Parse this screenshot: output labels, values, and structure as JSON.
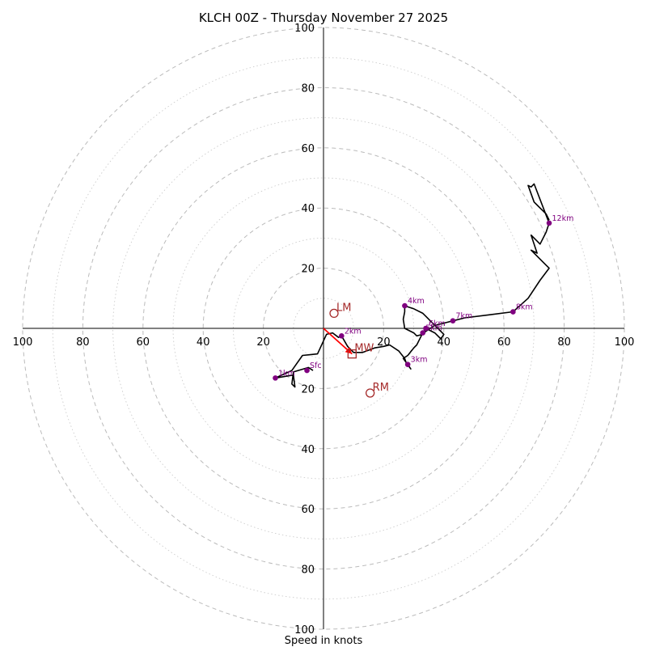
{
  "chart_data": {
    "type": "scatter",
    "subtype": "hodograph",
    "title": "KLCH 00Z - Thursday November 27 2025",
    "xlabel": "Speed in knots",
    "ylabel": "",
    "units": "knots",
    "xlim": [
      -100,
      100
    ],
    "ylim": [
      -100,
      100
    ],
    "ring_major_step": 20,
    "ring_minor_step": 10,
    "grid": true,
    "x_tick_labels": [
      "100",
      "80",
      "60",
      "40",
      "20",
      "20",
      "40",
      "60",
      "80",
      "100"
    ],
    "y_tick_labels": [
      "100",
      "80",
      "60",
      "40",
      "20",
      "20",
      "40",
      "60",
      "80",
      "100"
    ],
    "x_tick_values": [
      -100,
      -80,
      -60,
      -40,
      -20,
      20,
      40,
      60,
      80,
      100
    ],
    "y_tick_values": [
      100,
      80,
      60,
      40,
      20,
      -20,
      -40,
      -60,
      -80,
      -100
    ],
    "trace": [
      [
        -3.5,
        -14
      ],
      [
        -5,
        -13
      ],
      [
        -10,
        -14.5
      ],
      [
        -10.5,
        -18.5
      ],
      [
        -9.5,
        -19.5
      ],
      [
        -10,
        -15.5
      ],
      [
        -16,
        -16.5
      ],
      [
        -10.5,
        -14
      ],
      [
        -7,
        -9
      ],
      [
        -2,
        -8.5
      ],
      [
        1,
        -2
      ],
      [
        3,
        -1.5
      ],
      [
        5,
        -3
      ],
      [
        6,
        -2.5
      ],
      [
        8,
        -6
      ],
      [
        10,
        -8
      ],
      [
        13,
        -8
      ],
      [
        17,
        -6.5
      ],
      [
        20,
        -6
      ],
      [
        22,
        -5.5
      ],
      [
        25,
        -7.5
      ],
      [
        27,
        -10
      ],
      [
        27.5,
        -11.5
      ],
      [
        28,
        -12
      ],
      [
        29,
        -13.5
      ],
      [
        26.5,
        -10
      ],
      [
        28,
        -9
      ],
      [
        30,
        -6.5
      ],
      [
        31,
        -5.5
      ],
      [
        32.5,
        -2.5
      ],
      [
        33,
        -1.5
      ],
      [
        34,
        0
      ],
      [
        37,
        -1.5
      ],
      [
        39,
        -3.5
      ],
      [
        40,
        -2
      ],
      [
        38,
        0
      ],
      [
        36,
        2
      ],
      [
        34,
        4
      ],
      [
        33,
        5
      ],
      [
        30,
        6.5
      ],
      [
        27,
        7.5
      ],
      [
        27,
        5.5
      ],
      [
        26.5,
        3
      ],
      [
        27,
        0
      ],
      [
        30,
        -1.5
      ],
      [
        31,
        -2.5
      ],
      [
        33,
        -2
      ],
      [
        34,
        -1
      ],
      [
        37,
        1
      ],
      [
        41,
        2
      ],
      [
        43,
        2.5
      ],
      [
        47,
        3.5
      ],
      [
        55,
        4.5
      ],
      [
        63,
        5.5
      ],
      [
        68,
        10
      ],
      [
        72,
        16
      ],
      [
        75,
        20
      ],
      [
        74,
        21
      ],
      [
        69,
        26
      ],
      [
        71,
        25
      ],
      [
        69,
        31
      ],
      [
        72,
        28
      ],
      [
        74,
        32
      ],
      [
        75,
        35
      ],
      [
        70,
        48
      ],
      [
        69,
        47
      ],
      [
        68,
        47.5
      ],
      [
        70,
        42
      ],
      [
        71,
        41
      ],
      [
        74,
        38
      ],
      [
        75,
        36
      ]
    ],
    "height_markers": [
      {
        "label": "Sfc",
        "u": -5.5,
        "v": -14
      },
      {
        "label": "1km",
        "u": -16,
        "v": -16.5
      },
      {
        "label": "2km",
        "u": 6,
        "v": -2.5
      },
      {
        "label": "3km",
        "u": 28,
        "v": -12
      },
      {
        "label": "4km",
        "u": 27,
        "v": 7.5
      },
      {
        "label": "5km",
        "u": 33,
        "v": -1.5
      },
      {
        "label": "6km",
        "u": 34,
        "v": 0
      },
      {
        "label": "7km",
        "u": 43,
        "v": 2.5
      },
      {
        "label": "8km",
        "u": 63,
        "v": 5.5
      },
      {
        "label": "12km",
        "u": 75,
        "v": 35
      }
    ],
    "storm_motion": [
      {
        "label": "LM",
        "u": 3.5,
        "v": 5,
        "marker": "circle"
      },
      {
        "label": "RM",
        "u": 15.5,
        "v": -21.5,
        "marker": "circle"
      },
      {
        "label": "MW",
        "u": 9.5,
        "v": -8.5,
        "marker": "square"
      }
    ],
    "mean_wind_vector": {
      "u": 9.5,
      "v": -8.5,
      "color": "#ff0000"
    },
    "colors": {
      "trace": "#000000",
      "height_marker": "#800080",
      "storm_motion": "#a52a2a",
      "vector": "#ff0000",
      "grid": "#bbbbbb"
    }
  }
}
